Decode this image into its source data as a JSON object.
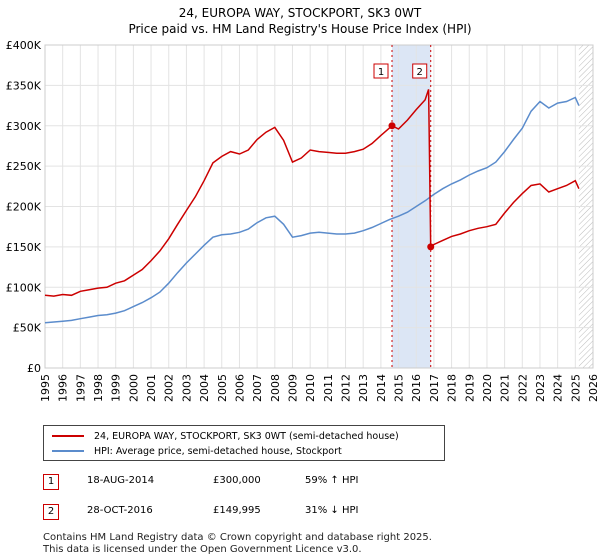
{
  "chart_data": {
    "type": "line",
    "title": "24, EUROPA WAY, STOCKPORT, SK3 0WT",
    "subtitle": "Price paid vs. HM Land Registry's House Price Index (HPI)",
    "xlabel": "",
    "ylabel": "",
    "xlim": [
      1995,
      2026
    ],
    "ylim": [
      0,
      400000
    ],
    "y_ticks": [
      {
        "value": 0,
        "label": "£0"
      },
      {
        "value": 50000,
        "label": "£50K"
      },
      {
        "value": 100000,
        "label": "£100K"
      },
      {
        "value": 150000,
        "label": "£150K"
      },
      {
        "value": 200000,
        "label": "£200K"
      },
      {
        "value": 250000,
        "label": "£250K"
      },
      {
        "value": 300000,
        "label": "£300K"
      },
      {
        "value": 350000,
        "label": "£350K"
      },
      {
        "value": 400000,
        "label": "£400K"
      }
    ],
    "x_ticks": [
      "1995",
      "1996",
      "1997",
      "1998",
      "1999",
      "2000",
      "2001",
      "2002",
      "2003",
      "2004",
      "2005",
      "2006",
      "2007",
      "2008",
      "2009",
      "2010",
      "2011",
      "2012",
      "2013",
      "2014",
      "2015",
      "2016",
      "2017",
      "2018",
      "2019",
      "2020",
      "2021",
      "2022",
      "2023",
      "2024",
      "2025",
      "2026"
    ],
    "grid": true,
    "hatch_from": 2025.2,
    "colors": {
      "property": "#cc0000",
      "hpi": "#5b8ccc",
      "marker_line": "#cc0000",
      "shade": "#dce6f5"
    },
    "series": [
      {
        "name": "24, EUROPA WAY, STOCKPORT, SK3 0WT (semi-detached house)",
        "color": "#cc0000",
        "x": [
          1995.0,
          1995.5,
          1996.0,
          1996.5,
          1997.0,
          1997.5,
          1998.0,
          1998.5,
          1999.0,
          1999.5,
          2000.0,
          2000.5,
          2001.0,
          2001.5,
          2002.0,
          2002.5,
          2003.0,
          2003.5,
          2004.0,
          2004.5,
          2005.0,
          2005.5,
          2006.0,
          2006.5,
          2007.0,
          2007.5,
          2008.0,
          2008.5,
          2009.0,
          2009.5,
          2010.0,
          2010.5,
          2011.0,
          2011.5,
          2012.0,
          2012.5,
          2013.0,
          2013.5,
          2014.0,
          2014.63,
          2015.0,
          2015.5,
          2016.0,
          2016.5,
          2016.7,
          2016.82,
          2017.0,
          2017.5,
          2018.0,
          2018.5,
          2019.0,
          2019.5,
          2020.0,
          2020.5,
          2021.0,
          2021.5,
          2022.0,
          2022.5,
          2023.0,
          2023.5,
          2024.0,
          2024.5,
          2025.0,
          2025.2
        ],
        "values": [
          90000,
          89000,
          91000,
          90000,
          95000,
          97000,
          99000,
          100000,
          105000,
          108000,
          115000,
          122000,
          133000,
          145000,
          160000,
          178000,
          195000,
          212000,
          232000,
          254000,
          262000,
          268000,
          265000,
          270000,
          283000,
          292000,
          298000,
          282000,
          255000,
          260000,
          270000,
          268000,
          267000,
          266000,
          266000,
          268000,
          271000,
          278000,
          288000,
          300000,
          296000,
          307000,
          320000,
          332000,
          345000,
          149995,
          153000,
          158000,
          163000,
          166000,
          170000,
          173000,
          175000,
          178000,
          192000,
          205000,
          216000,
          226000,
          228000,
          218000,
          222000,
          226000,
          232000,
          222000
        ]
      },
      {
        "name": "HPI: Average price, semi-detached house, Stockport",
        "color": "#5b8ccc",
        "x": [
          1995.0,
          1995.5,
          1996.0,
          1996.5,
          1997.0,
          1997.5,
          1998.0,
          1998.5,
          1999.0,
          1999.5,
          2000.0,
          2000.5,
          2001.0,
          2001.5,
          2002.0,
          2002.5,
          2003.0,
          2003.5,
          2004.0,
          2004.5,
          2005.0,
          2005.5,
          2006.0,
          2006.5,
          2007.0,
          2007.5,
          2008.0,
          2008.5,
          2009.0,
          2009.5,
          2010.0,
          2010.5,
          2011.0,
          2011.5,
          2012.0,
          2012.5,
          2013.0,
          2013.5,
          2014.0,
          2014.5,
          2015.0,
          2015.5,
          2016.0,
          2016.5,
          2017.0,
          2017.5,
          2018.0,
          2018.5,
          2019.0,
          2019.5,
          2020.0,
          2020.5,
          2021.0,
          2021.5,
          2022.0,
          2022.5,
          2023.0,
          2023.5,
          2024.0,
          2024.5,
          2025.0,
          2025.2
        ],
        "values": [
          56000,
          57000,
          58000,
          59000,
          61000,
          63000,
          65000,
          66000,
          68000,
          71000,
          76000,
          81000,
          87000,
          94000,
          105000,
          118000,
          130000,
          141000,
          152000,
          162000,
          165000,
          166000,
          168000,
          172000,
          180000,
          186000,
          188000,
          178000,
          162000,
          164000,
          167000,
          168000,
          167000,
          166000,
          166000,
          167000,
          170000,
          174000,
          179000,
          184000,
          188000,
          193000,
          200000,
          207000,
          215000,
          222000,
          228000,
          233000,
          239000,
          244000,
          248000,
          255000,
          268000,
          283000,
          297000,
          318000,
          330000,
          322000,
          328000,
          330000,
          335000,
          325000
        ]
      }
    ],
    "annotations": [
      {
        "label": "1",
        "x": 2014.63,
        "y": 300000
      },
      {
        "label": "2",
        "x": 2016.82,
        "y": 149995
      }
    ]
  },
  "legend": [
    "24, EUROPA WAY, STOCKPORT, SK3 0WT (semi-detached house)",
    "HPI: Average price, semi-detached house, Stockport"
  ],
  "transactions": [
    {
      "num": "1",
      "date": "18-AUG-2014",
      "price": "£300,000",
      "hpi": "59% ↑ HPI"
    },
    {
      "num": "2",
      "date": "28-OCT-2016",
      "price": "£149,995",
      "hpi": "31% ↓ HPI"
    }
  ],
  "footer": {
    "line1": "Contains HM Land Registry data © Crown copyright and database right 2025.",
    "line2": "This data is licensed under the Open Government Licence v3.0."
  }
}
